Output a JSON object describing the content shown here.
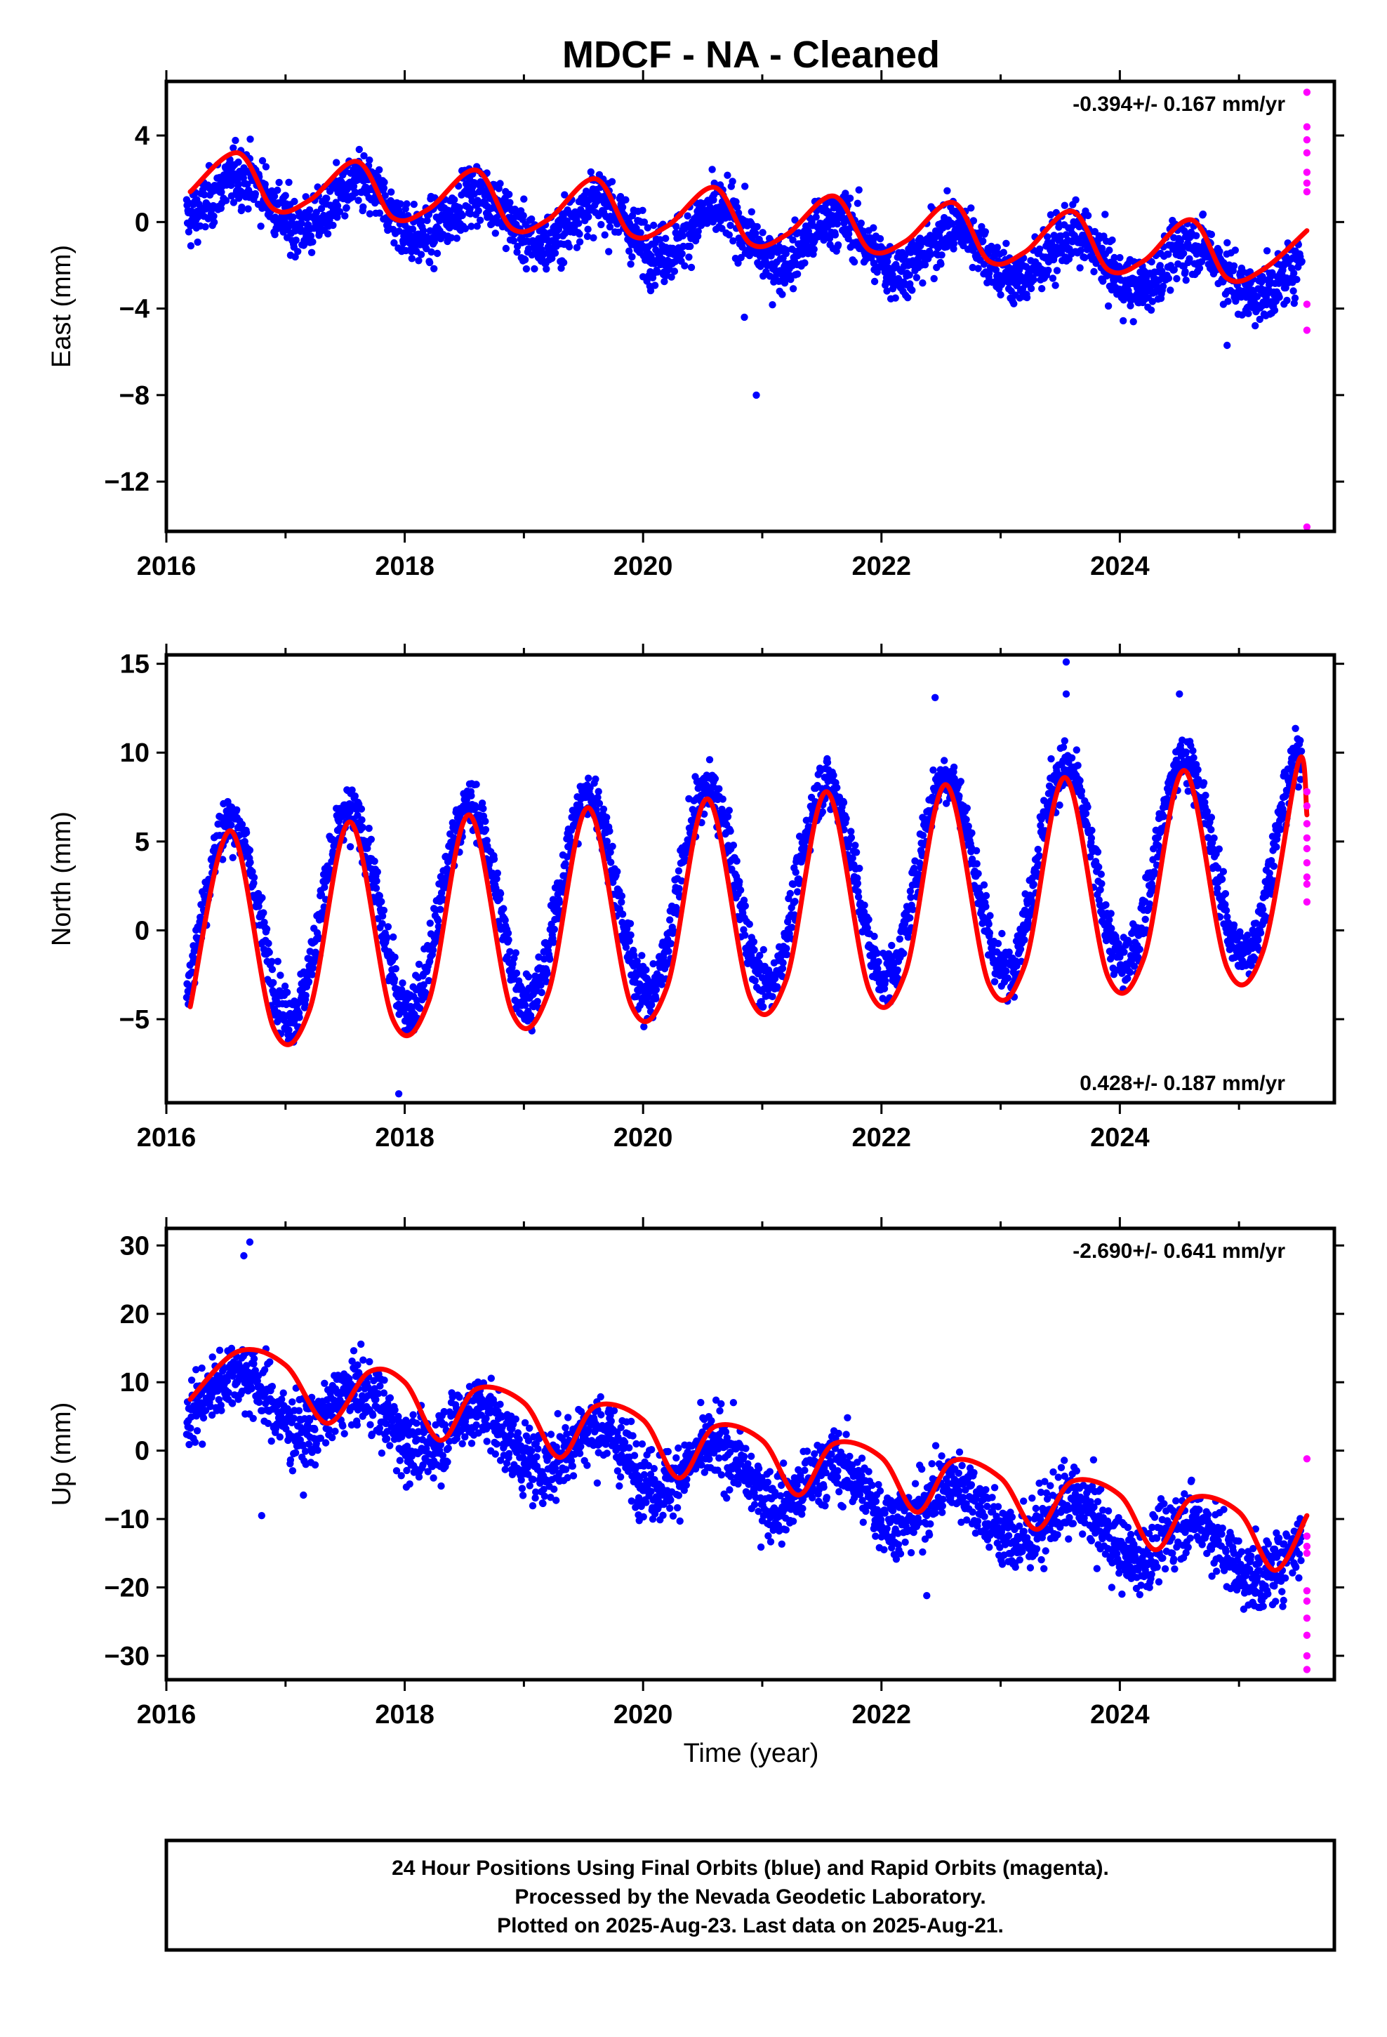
{
  "title": "MDCF  - NA - Cleaned",
  "colors": {
    "final": "#0000ff",
    "rapid": "#ff00ff",
    "model": "#ff0000",
    "frame": "#000000"
  },
  "chart_data": [
    {
      "type": "scatter",
      "ylabel": "East (mm)",
      "xlim": [
        2016.0,
        2025.8
      ],
      "ylim": [
        -14.3,
        6.5
      ],
      "yticks": [
        4,
        0,
        -4,
        -8,
        -12
      ],
      "xticks": [
        2016,
        2018,
        2020,
        2022,
        2024
      ],
      "rate": "-0.394+/- 0.167 mm/yr",
      "rate_position": "top-right",
      "model": {
        "start": 2016.17,
        "end": 2025.57,
        "offset": 1.2,
        "trend": -0.394,
        "annual_amp": 1.1,
        "annual_peak": 2016.63
      },
      "fit_line": {
        "name": "model",
        "x": [
          2016.2,
          2016.6,
          2016.9,
          2017.2,
          2017.6,
          2017.9,
          2018.2,
          2018.6,
          2018.9,
          2019.2,
          2019.6,
          2019.9,
          2020.2,
          2020.6,
          2020.9,
          2021.2,
          2021.6,
          2021.9,
          2022.2,
          2022.6,
          2022.9,
          2023.2,
          2023.6,
          2023.9,
          2024.2,
          2024.6,
          2024.9,
          2025.2,
          2025.57
        ],
        "y": [
          1.4,
          3.2,
          0.6,
          1.0,
          2.8,
          0.2,
          0.6,
          2.4,
          -0.3,
          0.1,
          2.0,
          -0.6,
          -0.2,
          1.6,
          -1.0,
          -0.6,
          1.2,
          -1.3,
          -0.9,
          0.9,
          -1.8,
          -1.4,
          0.5,
          -2.2,
          -1.8,
          0.1,
          -2.6,
          -2.2,
          -0.4
        ]
      },
      "rapid_points": {
        "x": [
          2025.57,
          2025.57,
          2025.57,
          2025.57,
          2025.57,
          2025.57,
          2025.57,
          2025.57,
          2025.57,
          2025.57
        ],
        "y": [
          6.0,
          4.4,
          3.8,
          3.2,
          2.3,
          1.4,
          -3.8,
          -5.0,
          -14.1,
          1.8
        ]
      },
      "outliers": {
        "x": [
          2020.95,
          2020.85,
          2024.9
        ],
        "y": [
          -8.0,
          -4.4,
          -5.7
        ]
      },
      "noise_sd": 0.95
    },
    {
      "type": "scatter",
      "ylabel": "North (mm)",
      "xlim": [
        2016.0,
        2025.8
      ],
      "ylim": [
        -9.7,
        15.5
      ],
      "yticks": [
        15,
        10,
        5,
        0,
        -5
      ],
      "xticks": [
        2016,
        2018,
        2020,
        2022,
        2024
      ],
      "rate": "0.428+/- 0.187 mm/yr",
      "rate_position": "bottom-right",
      "model": {
        "start": 2016.17,
        "end": 2025.57,
        "offset": 0.4,
        "trend": 0.428,
        "annual_amp": 5.6,
        "annual_peak": 2016.54
      },
      "fit_line": {
        "name": "model",
        "x": [
          2016.2,
          2016.54,
          2016.9,
          2017.2,
          2017.54,
          2017.9,
          2018.2,
          2018.54,
          2018.9,
          2019.2,
          2019.54,
          2019.9,
          2020.2,
          2020.54,
          2020.9,
          2021.2,
          2021.54,
          2021.9,
          2022.2,
          2022.54,
          2022.9,
          2023.2,
          2023.54,
          2023.9,
          2024.2,
          2024.54,
          2024.9,
          2025.2,
          2025.5,
          2025.57
        ],
        "y": [
          -4.3,
          5.6,
          -5.5,
          -4.5,
          6.1,
          -5.0,
          -4.0,
          6.5,
          -4.6,
          -3.6,
          6.9,
          -4.2,
          -3.2,
          7.4,
          -3.8,
          -2.8,
          7.8,
          -3.4,
          -2.4,
          8.2,
          -3.0,
          -2.0,
          8.6,
          -2.6,
          -1.6,
          9.0,
          -2.1,
          -1.2,
          9.5,
          6.5
        ]
      },
      "rapid_points": {
        "x": [
          2025.57,
          2025.57,
          2025.57,
          2025.57,
          2025.57,
          2025.57,
          2025.57,
          2025.57,
          2025.57
        ],
        "y": [
          7.8,
          7.0,
          6.0,
          5.2,
          4.6,
          3.8,
          3.0,
          2.6,
          1.6
        ]
      },
      "outliers": {
        "x": [
          2017.95,
          2023.55,
          2023.55,
          2022.45,
          2024.5
        ],
        "y": [
          -9.2,
          15.1,
          13.3,
          13.1,
          13.3
        ]
      },
      "noise_sd": 1.1
    },
    {
      "type": "scatter",
      "ylabel": "Up (mm)",
      "xlabel": "Time (year)",
      "xlim": [
        2016.0,
        2025.8
      ],
      "ylim": [
        -33.5,
        32.5
      ],
      "yticks": [
        30,
        20,
        10,
        0,
        -10,
        -20,
        -30
      ],
      "xticks": [
        2016,
        2018,
        2020,
        2022,
        2024
      ],
      "rate": "-2.690+/- 0.641 mm/yr",
      "rate_position": "top-right",
      "model": {
        "start": 2016.17,
        "end": 2025.57,
        "offset": 9.0,
        "trend": -2.69,
        "annual_amp": 3.6,
        "annual_peak": 2016.62
      },
      "fit_line": {
        "name": "model",
        "x": [
          2016.2,
          2016.6,
          2017.0,
          2017.35,
          2017.7,
          2018.0,
          2018.3,
          2018.6,
          2019.0,
          2019.3,
          2019.6,
          2020.0,
          2020.3,
          2020.6,
          2021.0,
          2021.3,
          2021.6,
          2022.0,
          2022.3,
          2022.6,
          2023.0,
          2023.3,
          2023.6,
          2024.0,
          2024.3,
          2024.6,
          2025.0,
          2025.3,
          2025.57
        ],
        "y": [
          7.5,
          14.5,
          12.5,
          4.0,
          11.5,
          10.0,
          1.5,
          9.0,
          7.0,
          -1.0,
          6.5,
          4.5,
          -4.0,
          3.5,
          1.5,
          -6.5,
          1.0,
          -1.0,
          -9.0,
          -1.5,
          -4.0,
          -11.5,
          -4.5,
          -6.5,
          -14.5,
          -7.0,
          -9.0,
          -17.5,
          -9.5
        ]
      },
      "rapid_points": {
        "x": [
          2025.57,
          2025.57,
          2025.57,
          2025.57,
          2025.57,
          2025.57,
          2025.57,
          2025.57,
          2025.57,
          2025.57
        ],
        "y": [
          -1.2,
          -12.5,
          -14.0,
          -15.0,
          -20.5,
          -22.0,
          -24.5,
          -27.0,
          -30.0,
          -32.0
        ]
      },
      "outliers": {
        "x": [
          2016.7,
          2016.65,
          2016.8,
          2017.15,
          2022.38
        ],
        "y": [
          30.5,
          28.5,
          -9.5,
          -6.5,
          -21.2
        ]
      },
      "noise_sd": 3.6
    }
  ],
  "footer": {
    "line1": "24 Hour Positions Using Final Orbits (blue) and Rapid Orbits (magenta).",
    "line2": "Processed by the Nevada Geodetic Laboratory.",
    "line3": "Plotted on 2025-Aug-23. Last data on 2025-Aug-21."
  }
}
